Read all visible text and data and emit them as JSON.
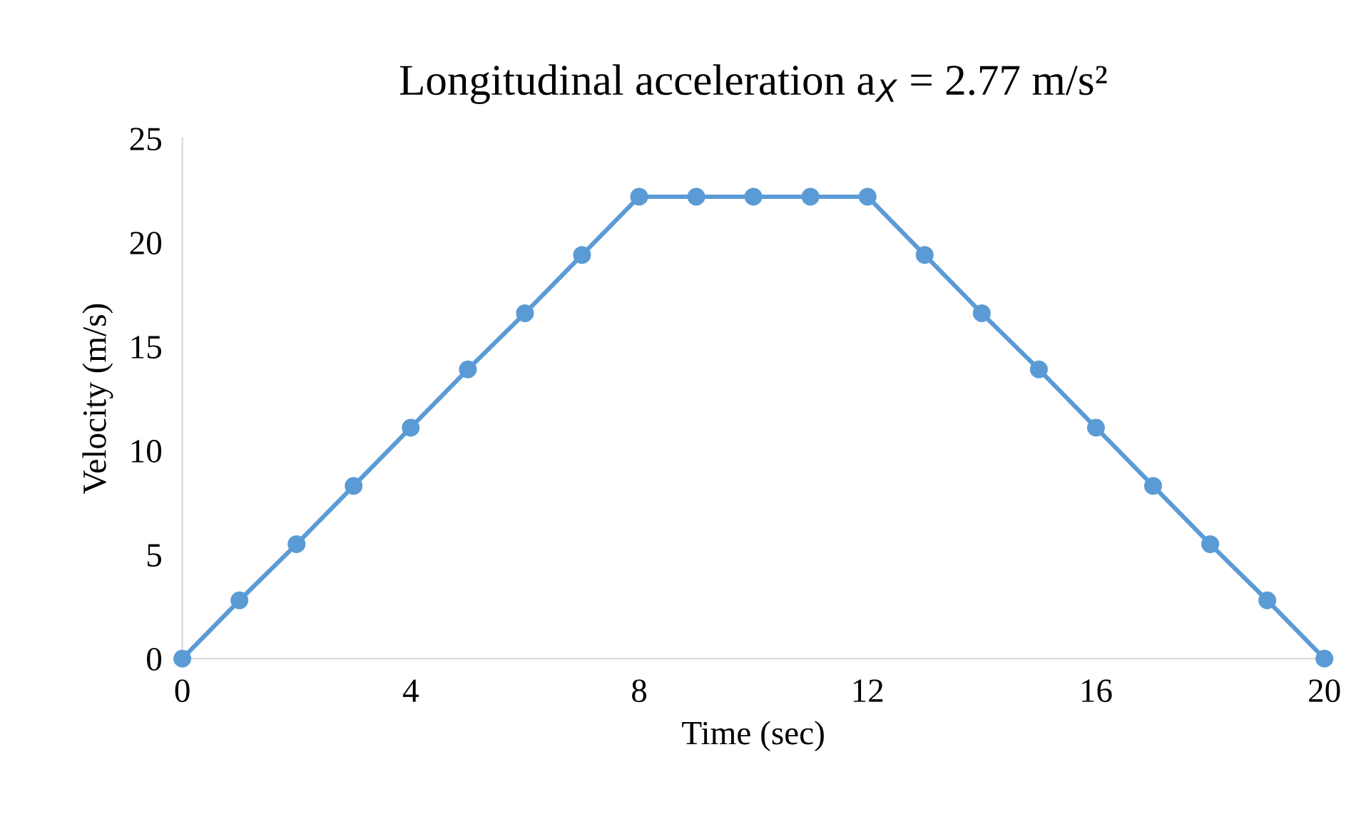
{
  "chart_data": {
    "type": "line",
    "title": "Longitudinal acceleration a$_{X}$ = 2.77 m/s²",
    "xlabel": "Time (sec)",
    "ylabel": "Velocity (m/s)",
    "x": [
      0,
      1,
      2,
      3,
      4,
      5,
      6,
      7,
      8,
      9,
      10,
      11,
      12,
      13,
      14,
      15,
      16,
      17,
      18,
      19,
      20
    ],
    "series": [
      {
        "color": "#5b9bd5",
        "values": [
          0,
          2.8,
          5.5,
          8.3,
          11.1,
          13.9,
          16.6,
          19.4,
          22.2,
          22.2,
          22.2,
          22.2,
          22.2,
          19.4,
          16.6,
          13.9,
          11.1,
          8.3,
          5.5,
          2.8,
          0
        ]
      }
    ],
    "xlim": [
      0,
      20
    ],
    "ylim": [
      0,
      25
    ],
    "xticks": [
      0,
      4,
      8,
      12,
      16,
      20
    ],
    "yticks": [
      0,
      5,
      10,
      15,
      20,
      25
    ],
    "marker": "circle",
    "line_style": "solid"
  }
}
